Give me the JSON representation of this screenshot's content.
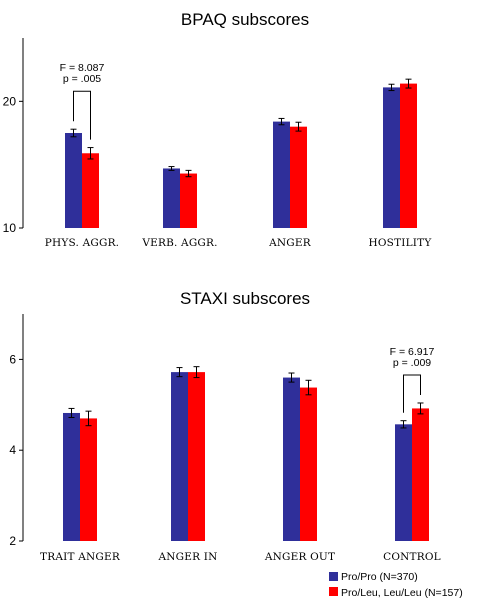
{
  "chart_data": [
    {
      "type": "bar",
      "title": "BPAQ subscores",
      "categories": [
        "PHYS. AGGR.",
        "VERB. AGGR.",
        "ANGER",
        "HOSTILITY"
      ],
      "series": [
        {
          "name": "Pro/Pro (N=370)",
          "color": "#2f2f9a",
          "values": [
            17.5,
            14.7,
            18.4,
            21.1
          ],
          "errors": [
            0.3,
            0.15,
            0.25,
            0.25
          ]
        },
        {
          "name": "Pro/Leu, Leu/Leu (N=157)",
          "color": "#ff0000",
          "values": [
            15.9,
            14.3,
            18.0,
            21.4
          ],
          "errors": [
            0.45,
            0.25,
            0.35,
            0.35
          ]
        }
      ],
      "ylim": [
        10,
        25
      ],
      "yticks": [
        10,
        20
      ],
      "annotation": {
        "category_index": 0,
        "lines": [
          "F = 8.087",
          "p = .005"
        ]
      }
    },
    {
      "type": "bar",
      "title": "STAXI subscores",
      "categories": [
        "TRAIT ANGER",
        "ANGER IN",
        "ANGER OUT",
        "CONTROL"
      ],
      "series": [
        {
          "name": "Pro/Pro (N=370)",
          "color": "#2f2f9a",
          "values": [
            4.82,
            5.72,
            5.6,
            4.57
          ],
          "errors": [
            0.1,
            0.1,
            0.1,
            0.08
          ]
        },
        {
          "name": "Pro/Leu, Leu/Leu (N=157)",
          "color": "#ff0000",
          "values": [
            4.7,
            5.72,
            5.38,
            4.92
          ],
          "errors": [
            0.16,
            0.12,
            0.16,
            0.12
          ]
        }
      ],
      "ylim": [
        2,
        7
      ],
      "yticks": [
        2,
        4,
        6
      ],
      "annotation": {
        "category_index": 3,
        "lines": [
          "F = 6.917",
          "p = .009"
        ]
      }
    }
  ],
  "legend": [
    {
      "label": "Pro/Pro (N=370)",
      "color": "#2f2f9a"
    },
    {
      "label": "Pro/Leu, Leu/Leu (N=157)",
      "color": "#ff0000"
    }
  ]
}
